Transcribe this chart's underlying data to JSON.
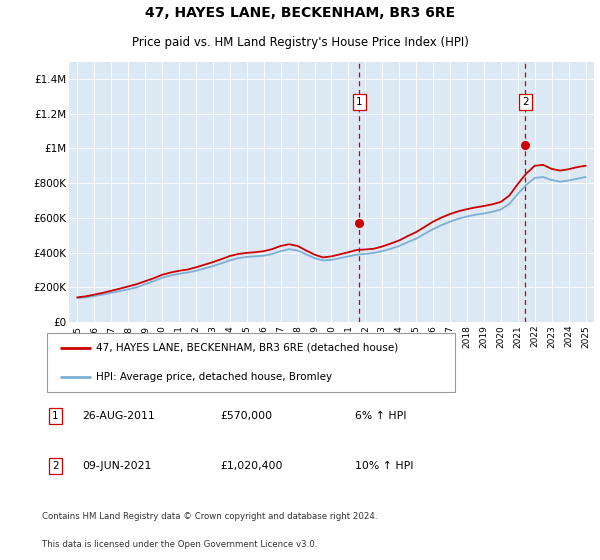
{
  "title": "47, HAYES LANE, BECKENHAM, BR3 6RE",
  "subtitle": "Price paid vs. HM Land Registry's House Price Index (HPI)",
  "ylabel_ticks": [
    "£0",
    "£200K",
    "£400K",
    "£600K",
    "£800K",
    "£1M",
    "£1.2M",
    "£1.4M"
  ],
  "ytick_values": [
    0,
    200000,
    400000,
    600000,
    800000,
    1000000,
    1200000,
    1400000
  ],
  "ylim": [
    0,
    1500000
  ],
  "bg_color": "#dce9f5",
  "legend_label_red": "47, HAYES LANE, BECKENHAM, BR3 6RE (detached house)",
  "legend_label_blue": "HPI: Average price, detached house, Bromley",
  "marker1_x": 2011.65,
  "marker1_price": 570000,
  "marker2_x": 2021.45,
  "marker2_price": 1020400,
  "row1_label": "1",
  "row1_date": "26-AUG-2011",
  "row1_price": "£570,000",
  "row1_hpi": "6% ↑ HPI",
  "row2_label": "2",
  "row2_date": "09-JUN-2021",
  "row2_price": "£1,020,400",
  "row2_hpi": "10% ↑ HPI",
  "footer_line1": "Contains HM Land Registry data © Crown copyright and database right 2024.",
  "footer_line2": "This data is licensed under the Open Government Licence v3.0.",
  "red_color": "#cc0000",
  "blue_color": "#7db0d4",
  "hpi_x": [
    1995,
    1995.5,
    1996,
    1996.5,
    1997,
    1997.5,
    1998,
    1998.5,
    1999,
    1999.5,
    2000,
    2000.5,
    2001,
    2001.5,
    2002,
    2002.5,
    2003,
    2003.5,
    2004,
    2004.5,
    2005,
    2005.5,
    2006,
    2006.5,
    2007,
    2007.5,
    2008,
    2008.5,
    2009,
    2009.5,
    2010,
    2010.5,
    2011,
    2011.5,
    2012,
    2012.5,
    2013,
    2013.5,
    2014,
    2014.5,
    2015,
    2015.5,
    2016,
    2016.5,
    2017,
    2017.5,
    2018,
    2018.5,
    2019,
    2019.5,
    2020,
    2020.5,
    2021,
    2021.5,
    2022,
    2022.5,
    2023,
    2023.5,
    2024,
    2024.5,
    2025
  ],
  "hpi_y": [
    138000,
    142000,
    150000,
    158000,
    168000,
    178000,
    188000,
    200000,
    218000,
    235000,
    255000,
    268000,
    278000,
    285000,
    295000,
    308000,
    322000,
    338000,
    355000,
    368000,
    375000,
    378000,
    382000,
    392000,
    408000,
    420000,
    412000,
    390000,
    368000,
    355000,
    358000,
    368000,
    378000,
    388000,
    392000,
    398000,
    408000,
    422000,
    438000,
    460000,
    480000,
    508000,
    535000,
    558000,
    578000,
    595000,
    608000,
    618000,
    625000,
    635000,
    648000,
    680000,
    738000,
    790000,
    830000,
    835000,
    818000,
    808000,
    815000,
    825000,
    835000
  ],
  "price_x": [
    1995,
    1995.5,
    1996,
    1996.5,
    1997,
    1997.5,
    1998,
    1998.5,
    1999,
    1999.5,
    2000,
    2000.5,
    2001,
    2001.5,
    2002,
    2002.5,
    2003,
    2003.5,
    2004,
    2004.5,
    2005,
    2005.5,
    2006,
    2006.5,
    2007,
    2007.5,
    2008,
    2008.5,
    2009,
    2009.5,
    2010,
    2010.5,
    2011,
    2011.5,
    2012,
    2012.5,
    2013,
    2013.5,
    2014,
    2014.5,
    2015,
    2015.5,
    2016,
    2016.5,
    2017,
    2017.5,
    2018,
    2018.5,
    2019,
    2019.5,
    2020,
    2020.5,
    2021,
    2021.5,
    2022,
    2022.5,
    2023,
    2023.5,
    2024,
    2024.5,
    2025
  ],
  "price_y": [
    142000,
    148000,
    158000,
    168000,
    180000,
    192000,
    205000,
    218000,
    235000,
    252000,
    272000,
    285000,
    295000,
    302000,
    315000,
    330000,
    345000,
    362000,
    380000,
    392000,
    398000,
    402000,
    408000,
    420000,
    438000,
    448000,
    438000,
    412000,
    388000,
    372000,
    378000,
    390000,
    402000,
    415000,
    418000,
    422000,
    435000,
    452000,
    470000,
    495000,
    518000,
    548000,
    578000,
    602000,
    622000,
    638000,
    650000,
    660000,
    668000,
    678000,
    692000,
    728000,
    795000,
    855000,
    900000,
    905000,
    882000,
    872000,
    880000,
    892000,
    900000
  ]
}
